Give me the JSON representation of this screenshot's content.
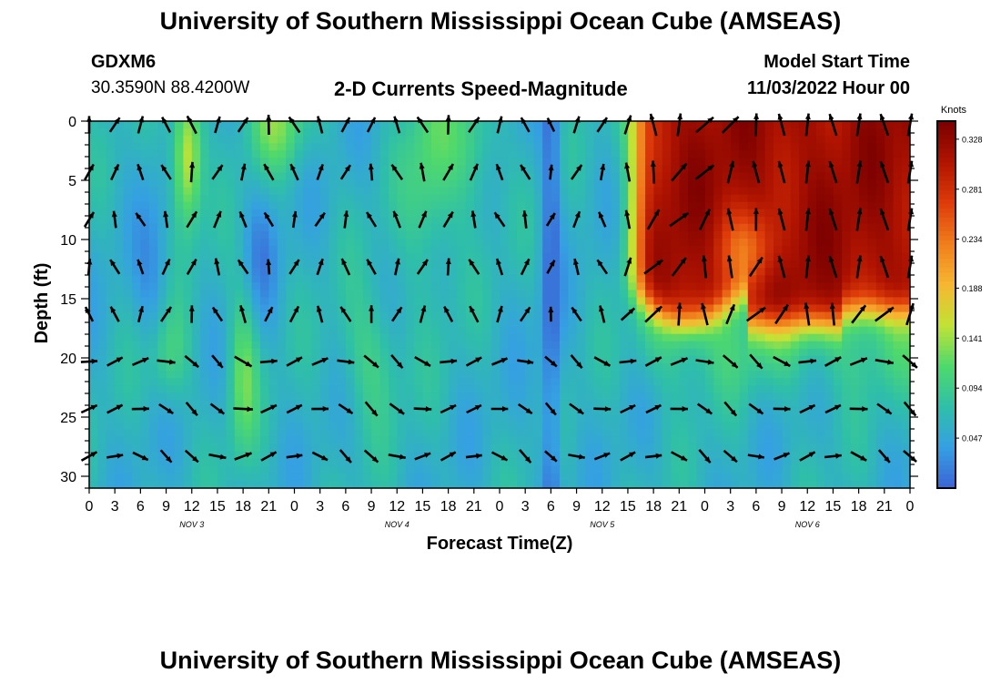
{
  "header": {
    "title": "University of Southern Mississippi Ocean Cube (AMSEAS)",
    "station": "GDXM6",
    "coords": "30.3590N  88.4200W",
    "subtitle": "2-D Currents Speed-Magnitude",
    "model_start_label": "Model Start Time",
    "model_start_value": "11/03/2022 Hour 00"
  },
  "footer": {
    "title": "University of Southern Mississippi Ocean Cube (AMSEAS)"
  },
  "chart_data": {
    "type": "heatmap",
    "title": "2-D Currents Speed-Magnitude",
    "xlabel": "Forecast Time(Z)",
    "ylabel": "Depth (ft)",
    "x_tick_labels": [
      "0",
      "3",
      "6",
      "9",
      "12",
      "15",
      "18",
      "21",
      "0",
      "3",
      "6",
      "9",
      "12",
      "15",
      "18",
      "21",
      "0",
      "3",
      "6",
      "9",
      "12",
      "15",
      "18",
      "21",
      "0",
      "3",
      "6",
      "9",
      "12",
      "15",
      "18",
      "21",
      "0"
    ],
    "day_labels": [
      "NOV 3",
      "NOV 4",
      "NOV 5",
      "NOV 6"
    ],
    "y_ticks": [
      0,
      5,
      10,
      15,
      20,
      25,
      30
    ],
    "ylim": [
      0,
      31
    ],
    "y_inverted": true,
    "colorbar": {
      "unit": "Knots",
      "ticks": [
        0.328,
        0.281,
        0.234,
        0.188,
        0.141,
        0.094,
        0.047
      ],
      "colors": [
        "#7a0000",
        "#b01400",
        "#dd3b0a",
        "#f07d1c",
        "#f6b632",
        "#c2e235",
        "#4fd96c",
        "#2fbfa8",
        "#35a0e2",
        "#3b64d6"
      ]
    },
    "depth_levels": [
      0,
      4,
      8,
      12,
      16,
      20,
      24,
      28
    ],
    "speed_samples": {
      "description": "approx speed (knots) at sampled columns per depth level",
      "hours": [
        0,
        12,
        24,
        36,
        48,
        54,
        60,
        72,
        84,
        96
      ],
      "surface": [
        0.06,
        0.16,
        0.04,
        0.09,
        0.13,
        0.02,
        0.06,
        0.33,
        0.31,
        0.33
      ],
      "mid": [
        0.07,
        0.06,
        0.05,
        0.1,
        0.08,
        0.02,
        0.07,
        0.28,
        0.25,
        0.28
      ],
      "bottom": [
        0.05,
        0.06,
        0.05,
        0.09,
        0.07,
        0.04,
        0.06,
        0.1,
        0.09,
        0.1
      ]
    }
  }
}
